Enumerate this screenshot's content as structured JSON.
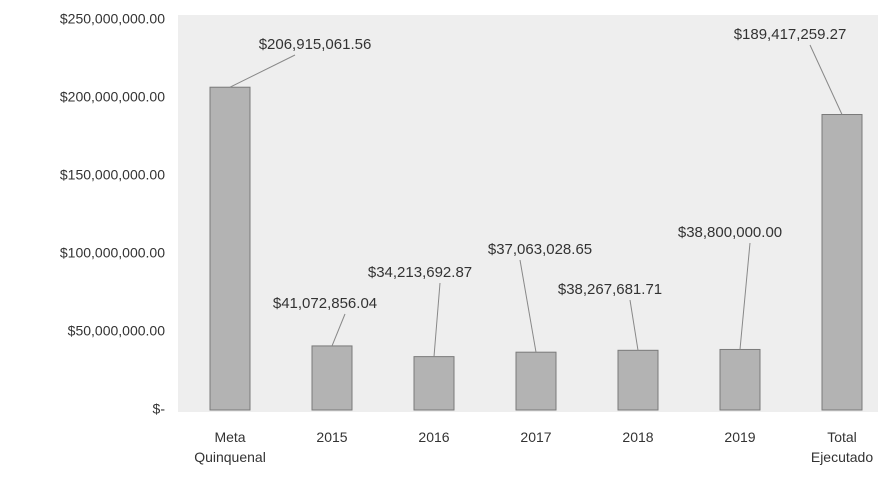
{
  "chart_data": {
    "type": "bar",
    "categories": [
      "Meta Quinquenal",
      "2015",
      "2016",
      "2017",
      "2018",
      "2019",
      "Total Ejecutado"
    ],
    "values": [
      206915061.56,
      41072856.04,
      34213692.87,
      37063028.65,
      38267681.71,
      38800000.0,
      189417259.27
    ],
    "value_labels": [
      "$206,915,061.56",
      "$41,072,856.04",
      "$34,213,692.87",
      "$37,063,028.65",
      "$38,267,681.71",
      "$38,800,000.00",
      "$189,417,259.27"
    ],
    "color": "#b3b3b3",
    "ylim": [
      0,
      250000000
    ],
    "yticks": [
      {
        "value": 0,
        "label": "$-"
      },
      {
        "value": 50000000,
        "label": "$50,000,000.00"
      },
      {
        "value": 100000000,
        "label": "$100,000,000.00"
      },
      {
        "value": 150000000,
        "label": "$150,000,000.00"
      },
      {
        "value": 200000000,
        "label": "$200,000,000.00"
      },
      {
        "value": 250000000,
        "label": "$250,000,000.00"
      }
    ],
    "grid": false
  }
}
